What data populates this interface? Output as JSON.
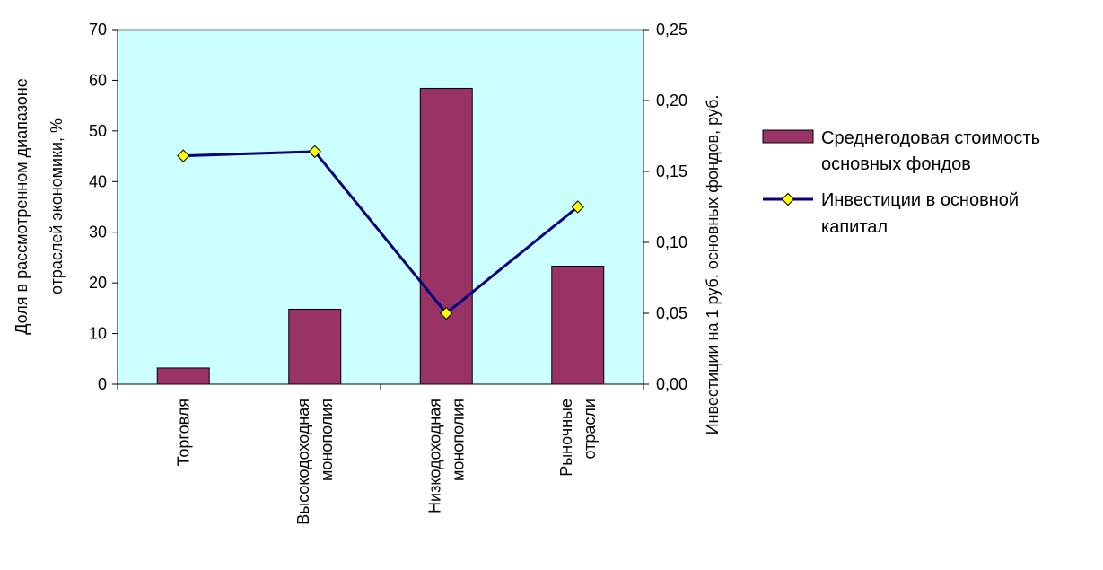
{
  "chart_data": {
    "type": "bar",
    "categories": [
      [
        "Торговля"
      ],
      [
        "Высокодоходная",
        "монополия"
      ],
      [
        "Низкодоходная",
        "монополия"
      ],
      [
        "Рыночные",
        "отрасли"
      ]
    ],
    "series": [
      {
        "name": "Среднегодовая стоимость основных фондов",
        "legend_lines": [
          "Среднегодовая стоимость",
          "основных фондов"
        ],
        "type": "bar",
        "axis": "left",
        "values": [
          3.2,
          14.8,
          58.4,
          23.3
        ]
      },
      {
        "name": "Инвестиции в основной капитал",
        "legend_lines": [
          "Инвестиции в основной",
          "капитал"
        ],
        "type": "line",
        "axis": "right",
        "values": [
          0.161,
          0.164,
          0.05,
          0.125
        ]
      }
    ],
    "ylabel": [
      "Доля в рассмотренном диапазоне",
      "отраслей экономики, %"
    ],
    "y2label": "Инвестиции на 1 руб. основных фондов, руб.",
    "ylim": [
      0,
      70
    ],
    "yticks": [
      "0",
      "10",
      "20",
      "30",
      "40",
      "50",
      "60",
      "70"
    ],
    "y2lim": [
      0,
      0.25
    ],
    "y2ticks": [
      "0,00",
      "0,05",
      "0,10",
      "0,15",
      "0,20",
      "0,25"
    ],
    "grid": false,
    "legend": "right",
    "colors": {
      "plot_background": "#ccffff",
      "bar": "#993366",
      "line": "#000080",
      "marker": "#ffff00"
    }
  }
}
